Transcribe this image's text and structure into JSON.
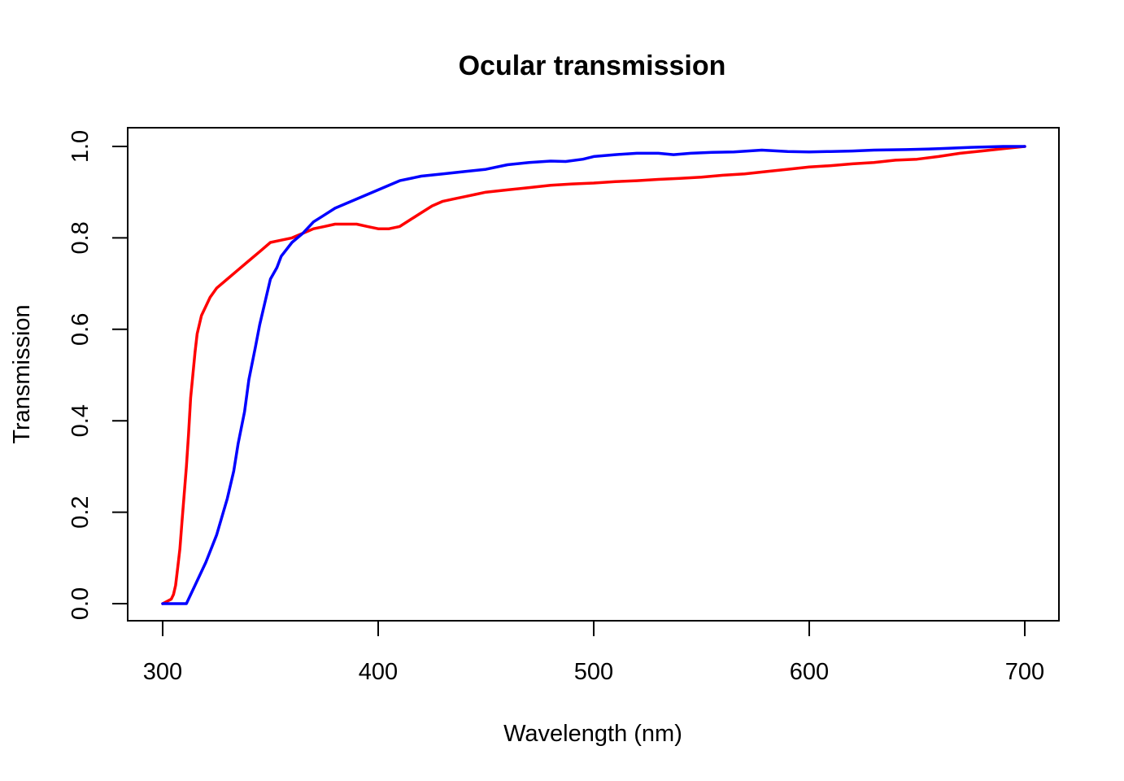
{
  "chart_data": {
    "type": "line",
    "title": "Ocular transmission",
    "xlabel": "Wavelength (nm)",
    "ylabel": "Transmission",
    "xlim": [
      300,
      700
    ],
    "ylim": [
      0,
      1
    ],
    "xticks": [
      300,
      400,
      500,
      600,
      700
    ],
    "xtick_labels": [
      "300",
      "400",
      "500",
      "600",
      "700"
    ],
    "yticks": [
      0,
      0.2,
      0.4,
      0.6,
      0.8,
      1.0
    ],
    "ytick_labels": [
      "0.0",
      "0.2",
      "0.4",
      "0.6",
      "0.8",
      "1.0"
    ],
    "grid": false,
    "legend": "none",
    "series": [
      {
        "color": "#ff0000",
        "x": [
          300,
          304,
          305,
          306,
          307,
          308,
          309,
          310,
          311,
          312,
          313,
          314,
          315,
          316,
          318,
          320,
          322,
          325,
          330,
          335,
          340,
          345,
          350,
          355,
          360,
          365,
          370,
          375,
          380,
          385,
          390,
          395,
          400,
          405,
          410,
          415,
          420,
          425,
          430,
          435,
          440,
          445,
          450,
          460,
          470,
          480,
          490,
          500,
          510,
          520,
          530,
          540,
          550,
          560,
          570,
          580,
          590,
          600,
          610,
          620,
          630,
          640,
          650,
          660,
          670,
          680,
          690,
          700
        ],
        "y": [
          0,
          0.01,
          0.02,
          0.04,
          0.08,
          0.12,
          0.18,
          0.24,
          0.3,
          0.37,
          0.45,
          0.5,
          0.55,
          0.59,
          0.63,
          0.65,
          0.67,
          0.69,
          0.71,
          0.73,
          0.75,
          0.77,
          0.79,
          0.795,
          0.8,
          0.81,
          0.82,
          0.825,
          0.83,
          0.83,
          0.83,
          0.825,
          0.82,
          0.82,
          0.825,
          0.84,
          0.855,
          0.87,
          0.88,
          0.885,
          0.89,
          0.895,
          0.9,
          0.905,
          0.91,
          0.915,
          0.918,
          0.92,
          0.923,
          0.925,
          0.928,
          0.93,
          0.933,
          0.937,
          0.94,
          0.945,
          0.95,
          0.955,
          0.958,
          0.962,
          0.965,
          0.97,
          0.972,
          0.978,
          0.985,
          0.99,
          0.995,
          1.0
        ]
      },
      {
        "color": "#0000ff",
        "x": [
          300,
          305,
          311,
          315,
          320,
          325,
          330,
          333,
          335,
          338,
          340,
          343,
          345,
          348,
          350,
          353,
          355,
          360,
          365,
          370,
          375,
          380,
          390,
          400,
          410,
          420,
          430,
          440,
          450,
          460,
          470,
          480,
          487,
          495,
          500,
          510,
          520,
          530,
          537,
          545,
          555,
          565,
          578,
          590,
          600,
          610,
          620,
          630,
          645,
          660,
          675,
          690,
          700
        ],
        "y": [
          0,
          0,
          0,
          0.04,
          0.09,
          0.15,
          0.23,
          0.29,
          0.35,
          0.42,
          0.49,
          0.56,
          0.61,
          0.67,
          0.71,
          0.735,
          0.76,
          0.79,
          0.81,
          0.835,
          0.85,
          0.865,
          0.885,
          0.905,
          0.925,
          0.935,
          0.94,
          0.945,
          0.95,
          0.96,
          0.965,
          0.968,
          0.967,
          0.972,
          0.978,
          0.982,
          0.985,
          0.985,
          0.982,
          0.985,
          0.987,
          0.988,
          0.992,
          0.989,
          0.988,
          0.989,
          0.99,
          0.992,
          0.993,
          0.995,
          0.998,
          1.0,
          1.0
        ]
      }
    ]
  }
}
